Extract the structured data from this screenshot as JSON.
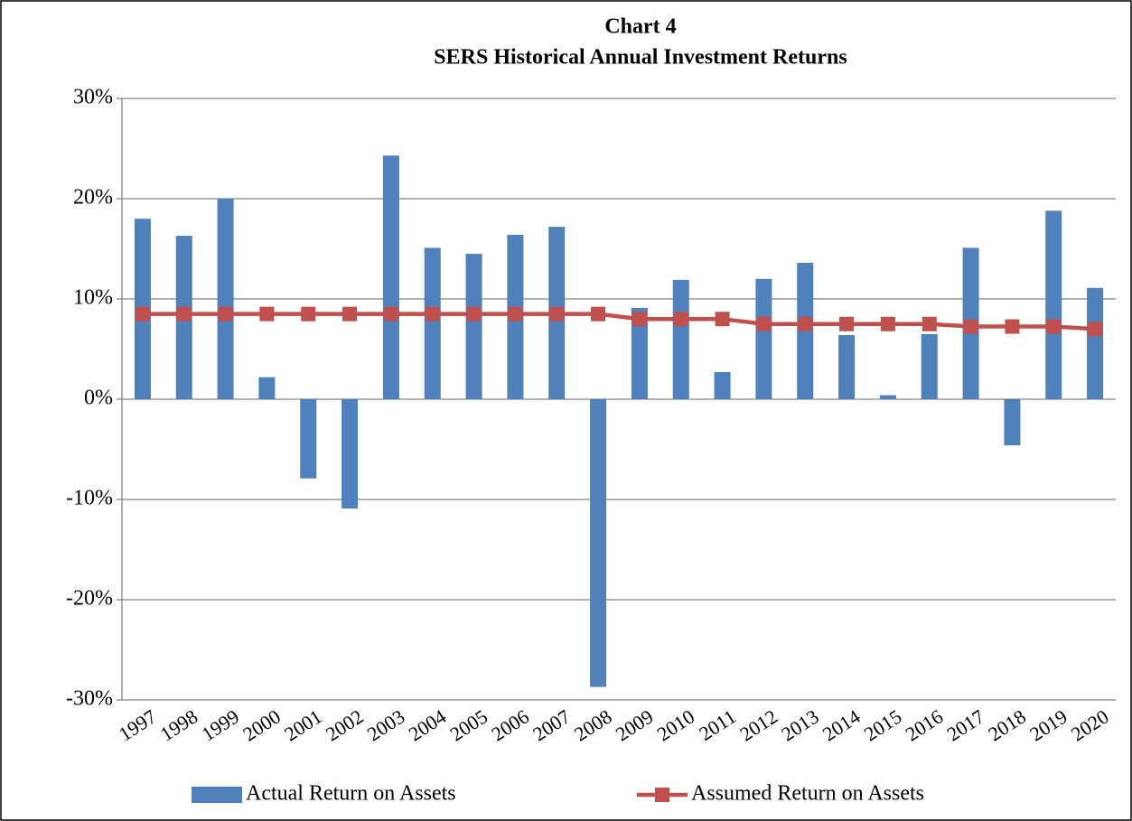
{
  "chart_data": {
    "type": "bar",
    "title": "Chart 4",
    "subtitle": "SERS Historical Annual Investment Returns",
    "categories": [
      "1997",
      "1998",
      "1999",
      "2000",
      "2001",
      "2002",
      "2003",
      "2004",
      "2005",
      "2006",
      "2007",
      "2008",
      "2009",
      "2010",
      "2011",
      "2012",
      "2013",
      "2014",
      "2015",
      "2016",
      "2017",
      "2018",
      "2019",
      "2020"
    ],
    "series": [
      {
        "name": "Actual Return on Assets",
        "type": "bar",
        "color": "#4f81bd",
        "values": [
          18.0,
          16.3,
          20.0,
          2.2,
          -7.9,
          -10.9,
          24.3,
          15.1,
          14.5,
          16.4,
          17.2,
          -28.7,
          9.1,
          11.9,
          2.7,
          12.0,
          13.6,
          6.4,
          0.4,
          6.5,
          15.1,
          -4.6,
          18.8,
          11.1
        ]
      },
      {
        "name": "Assumed Return on Assets",
        "type": "line",
        "color": "#c0504d",
        "values": [
          8.5,
          8.5,
          8.5,
          8.5,
          8.5,
          8.5,
          8.5,
          8.5,
          8.5,
          8.5,
          8.5,
          8.5,
          8.0,
          8.0,
          8.0,
          7.5,
          7.5,
          7.5,
          7.5,
          7.5,
          7.25,
          7.25,
          7.25,
          7.0
        ]
      }
    ],
    "ylim": [
      -30,
      30
    ],
    "yticks": [
      {
        "value": -30,
        "label": "-30%"
      },
      {
        "value": -20,
        "label": "-20%"
      },
      {
        "value": -10,
        "label": "-10%"
      },
      {
        "value": 0,
        "label": "0%"
      },
      {
        "value": 10,
        "label": "10%"
      },
      {
        "value": 20,
        "label": "20%"
      },
      {
        "value": 30,
        "label": "30%"
      }
    ],
    "grid": true,
    "legend": "bottom"
  }
}
